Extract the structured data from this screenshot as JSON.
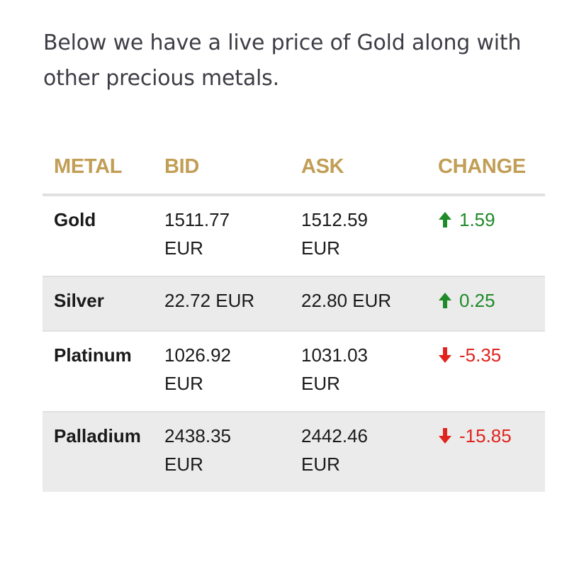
{
  "intro_text": "Below we have a live price of Gold along with other precious metals.",
  "table": {
    "headers": {
      "metal": "METAL",
      "bid": "BID",
      "ask": "ASK",
      "change": "CHANGE"
    },
    "rows": [
      {
        "metal": "Gold",
        "bid": "1511.77 EUR",
        "ask": "1512.59 EUR",
        "change": "1.59",
        "direction": "up",
        "direction_icon": "arrow-up-icon"
      },
      {
        "metal": "Silver",
        "bid": "22.72 EUR",
        "ask": "22.80 EUR",
        "change": "0.25",
        "direction": "up",
        "direction_icon": "arrow-up-icon"
      },
      {
        "metal": "Platinum",
        "bid": "1026.92 EUR",
        "ask": "1031.03 EUR",
        "change": "-5.35",
        "direction": "down",
        "direction_icon": "arrow-down-icon"
      },
      {
        "metal": "Palladium",
        "bid": "2438.35 EUR",
        "ask": "2442.46 EUR",
        "change": "-15.85",
        "direction": "down",
        "direction_icon": "arrow-down-icon"
      }
    ]
  },
  "colors": {
    "header_gold": "#c19e55",
    "up_green": "#1e8a28",
    "down_red": "#e0241d",
    "row_shade": "#ebebeb"
  }
}
